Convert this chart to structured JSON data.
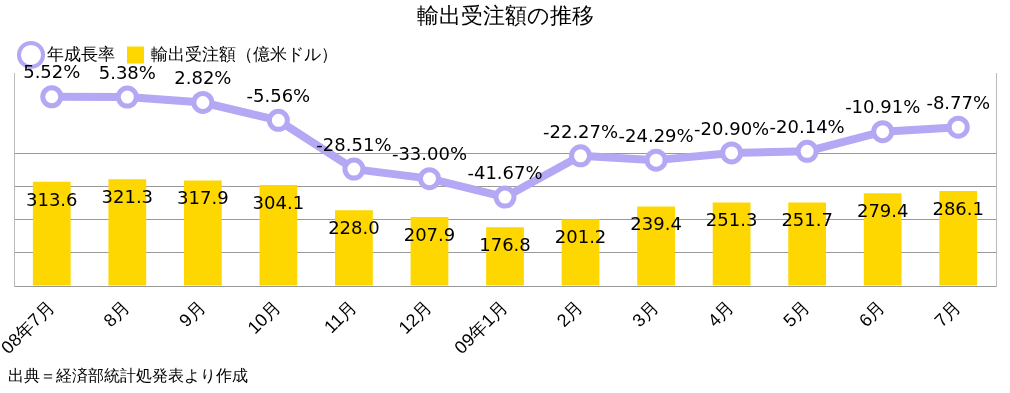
{
  "chart_data": {
    "type": "bar",
    "title": "輸出受注額の推移",
    "categories": [
      "08年7月",
      "8月",
      "9月",
      "10月",
      "11月",
      "12月",
      "09年1月",
      "2月",
      "3月",
      "4月",
      "5月",
      "6月",
      "7月"
    ],
    "series": [
      {
        "name": "年成長率",
        "type": "line",
        "axis": "y2",
        "color": "#b4a8f4",
        "values": [
          5.52,
          5.38,
          2.82,
          -5.56,
          -28.51,
          -33.0,
          -41.67,
          -22.27,
          -24.29,
          -20.9,
          -20.14,
          -10.91,
          -8.77
        ],
        "value_labels": [
          "5.52%",
          "5.38%",
          "2.82%",
          "-5.56%",
          "-28.51%",
          "-33.00%",
          "-41.67%",
          "-22.27%",
          "-24.29%",
          "-20.90%",
          "-20.14%",
          "-10.91%",
          "-8.77%"
        ]
      },
      {
        "name": "輸出受注額（億米ドル）",
        "color": "#ffd700",
        "values": [
          313.6,
          321.3,
          317.9,
          304.1,
          228.0,
          207.9,
          176.8,
          201.2,
          239.4,
          251.3,
          251.7,
          279.4,
          286.1
        ],
        "value_labels": [
          "313.6",
          "321.3",
          "317.9",
          "304.1",
          "228.0",
          "207.9",
          "176.8",
          "201.2",
          "239.4",
          "251.3",
          "251.7",
          "279.4",
          "286.1"
        ]
      }
    ],
    "ylim": [
      0,
      640
    ],
    "yticks": [
      {
        "value": 0,
        "label": null
      },
      {
        "value": 100,
        "label": null
      },
      {
        "value": 200,
        "label": null
      },
      {
        "value": 300,
        "label": null
      },
      {
        "value": 400,
        "label": null
      }
    ],
    "y2lim": [
      -83.5,
      16.5
    ],
    "grid": "y",
    "legend": "top left",
    "marker": "circle",
    "tick_labels": "x",
    "annotations": [
      "出典＝経済部統計処発表より作成"
    ]
  }
}
